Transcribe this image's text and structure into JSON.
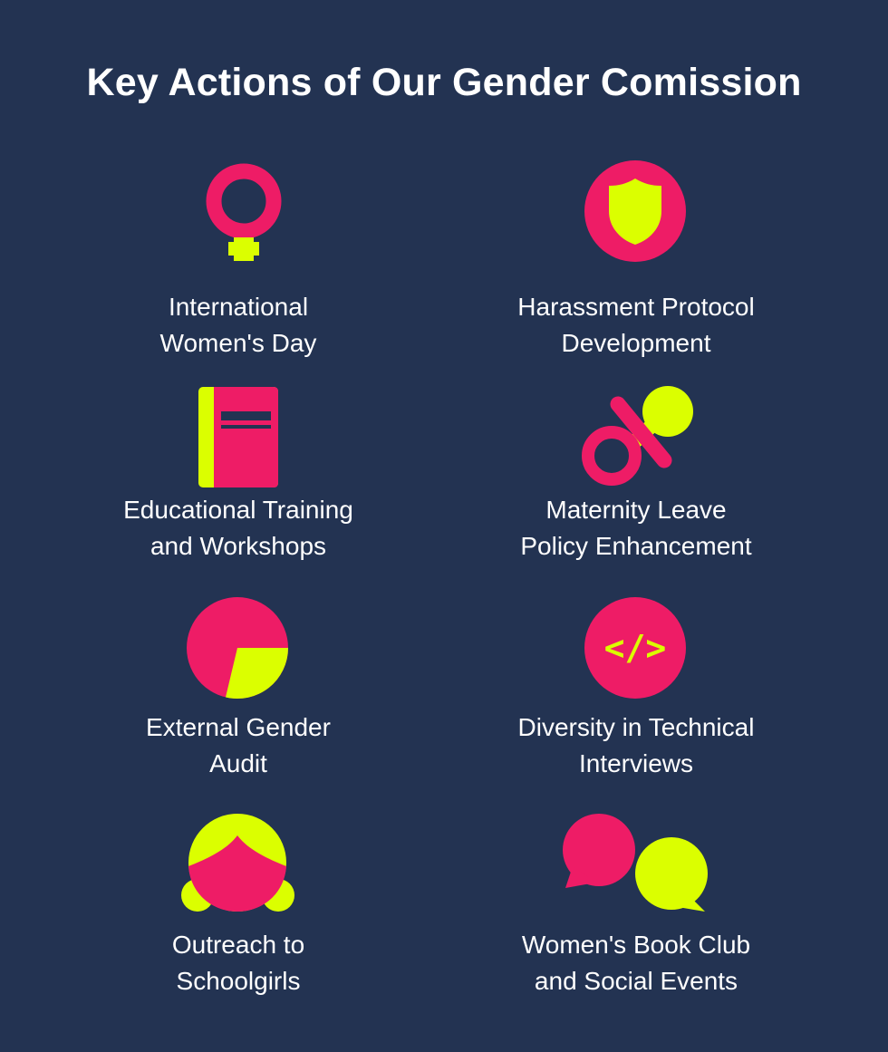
{
  "title": "Key Actions of Our Gender Comission",
  "colors": {
    "background": "#233352",
    "pink": "#EE1C66",
    "lime": "#DBFF00",
    "text": "#FFFFFF"
  },
  "items": [
    {
      "icon": "female-symbol-icon",
      "line1": "International",
      "line2": "Women's Day"
    },
    {
      "icon": "shield-icon",
      "line1": "Harassment Protocol",
      "line2": "Development"
    },
    {
      "icon": "book-icon",
      "line1": "Educational Training",
      "line2": "and Workshops"
    },
    {
      "icon": "pacifier-icon",
      "line1": "Maternity Leave",
      "line2": "Policy Enhancement"
    },
    {
      "icon": "pie-chart-icon",
      "line1": "External Gender",
      "line2": "Audit"
    },
    {
      "icon": "code-icon",
      "code_glyph": "</>",
      "line1": "Diversity in Technical",
      "line2": "Interviews"
    },
    {
      "icon": "girl-face-icon",
      "line1": "Outreach to",
      "line2": "Schoolgirls"
    },
    {
      "icon": "speech-bubbles-icon",
      "line1": "Women's Book Club",
      "line2": "and Social Events"
    }
  ]
}
